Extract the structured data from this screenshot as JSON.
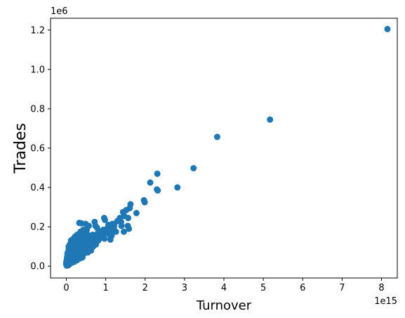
{
  "chart_data": {
    "type": "scatter",
    "title": "",
    "xlabel": "Turnover",
    "ylabel": "Trades",
    "x_offset_label": "1e15",
    "y_offset_label": "1e6",
    "xlim": [
      -0.4,
      8.4
    ],
    "ylim": [
      -0.06,
      1.26
    ],
    "x_ticks": [
      0,
      1,
      2,
      3,
      4,
      5,
      6,
      7,
      8
    ],
    "y_ticks": [
      0.0,
      0.2,
      0.4,
      0.6,
      0.8,
      1.0,
      1.2
    ],
    "x_tick_labels": [
      "0",
      "1",
      "2",
      "3",
      "4",
      "5",
      "6",
      "7",
      "8"
    ],
    "y_tick_labels": [
      "0.0",
      "0.2",
      "0.4",
      "0.6",
      "0.8",
      "1.0",
      "1.2"
    ],
    "grid": false,
    "marker_color": "#1f77b4",
    "points": [
      [
        8.15,
        1.205
      ],
      [
        5.17,
        0.745
      ],
      [
        3.83,
        0.657
      ],
      [
        3.23,
        0.498
      ],
      [
        2.82,
        0.4
      ],
      [
        2.31,
        0.47
      ],
      [
        2.3,
        0.39
      ],
      [
        2.32,
        0.385
      ],
      [
        2.13,
        0.425
      ],
      [
        1.97,
        0.335
      ],
      [
        1.99,
        0.325
      ],
      [
        1.63,
        0.315
      ],
      [
        1.61,
        0.295
      ],
      [
        1.52,
        0.285
      ],
      [
        1.44,
        0.275
      ],
      [
        1.47,
        0.255
      ],
      [
        1.78,
        0.27
      ],
      [
        1.57,
        0.245
      ],
      [
        1.36,
        0.245
      ],
      [
        1.39,
        0.225
      ],
      [
        1.4,
        0.205
      ],
      [
        1.56,
        0.205
      ],
      [
        1.59,
        0.19
      ],
      [
        1.46,
        0.175
      ],
      [
        1.22,
        0.215
      ],
      [
        1.17,
        0.215
      ],
      [
        1.14,
        0.195
      ],
      [
        1.19,
        0.18
      ],
      [
        1.26,
        0.175
      ],
      [
        1.07,
        0.21
      ],
      [
        0.96,
        0.245
      ],
      [
        0.98,
        0.235
      ],
      [
        1.08,
        0.18
      ],
      [
        1.01,
        0.17
      ],
      [
        1.15,
        0.155
      ],
      [
        1.12,
        0.135
      ],
      [
        0.94,
        0.185
      ],
      [
        0.87,
        0.175
      ],
      [
        0.78,
        0.195
      ],
      [
        0.72,
        0.225
      ],
      [
        0.74,
        0.205
      ],
      [
        0.79,
        0.165
      ],
      [
        0.91,
        0.15
      ],
      [
        0.88,
        0.16
      ],
      [
        0.97,
        0.14
      ],
      [
        0.67,
        0.16
      ],
      [
        0.64,
        0.14
      ],
      [
        0.57,
        0.205
      ],
      [
        0.52,
        0.185
      ],
      [
        0.49,
        0.215
      ],
      [
        0.33,
        0.22
      ],
      [
        0.38,
        0.218
      ],
      [
        0.36,
        0.175
      ],
      [
        0.42,
        0.16
      ],
      [
        0.47,
        0.145
      ],
      [
        0.61,
        0.13
      ],
      [
        0.81,
        0.13
      ],
      [
        0.55,
        0.115
      ],
      [
        0.65,
        0.11
      ],
      [
        0.72,
        0.12
      ],
      [
        0.45,
        0.13
      ],
      [
        0.28,
        0.16
      ],
      [
        0.3,
        0.145
      ],
      [
        0.22,
        0.15
      ],
      [
        0.19,
        0.14
      ],
      [
        0.15,
        0.135
      ],
      [
        0.12,
        0.13
      ],
      [
        0.25,
        0.125
      ],
      [
        0.34,
        0.12
      ],
      [
        0.4,
        0.11
      ],
      [
        0.5,
        0.1
      ],
      [
        0.58,
        0.095
      ],
      [
        0.63,
        0.08
      ],
      [
        0.52,
        0.085
      ],
      [
        0.44,
        0.09
      ],
      [
        0.36,
        0.1
      ],
      [
        0.29,
        0.105
      ],
      [
        0.23,
        0.115
      ],
      [
        0.17,
        0.11
      ],
      [
        0.11,
        0.105
      ],
      [
        0.08,
        0.095
      ],
      [
        0.14,
        0.09
      ],
      [
        0.2,
        0.085
      ],
      [
        0.27,
        0.08
      ],
      [
        0.33,
        0.075
      ],
      [
        0.39,
        0.07
      ],
      [
        0.46,
        0.065
      ],
      [
        0.4,
        0.05
      ],
      [
        0.41,
        0.045
      ],
      [
        0.35,
        0.055
      ],
      [
        0.31,
        0.06
      ],
      [
        0.25,
        0.065
      ],
      [
        0.19,
        0.07
      ],
      [
        0.13,
        0.075
      ],
      [
        0.07,
        0.08
      ],
      [
        0.04,
        0.07
      ],
      [
        0.09,
        0.06
      ],
      [
        0.15,
        0.055
      ],
      [
        0.21,
        0.05
      ],
      [
        0.26,
        0.045
      ],
      [
        0.3,
        0.04
      ],
      [
        0.22,
        0.035
      ],
      [
        0.17,
        0.04
      ],
      [
        0.11,
        0.045
      ],
      [
        0.06,
        0.05
      ],
      [
        0.03,
        0.055
      ],
      [
        0.02,
        0.04
      ],
      [
        0.05,
        0.035
      ],
      [
        0.08,
        0.03
      ],
      [
        0.12,
        0.028
      ],
      [
        0.16,
        0.025
      ],
      [
        0.2,
        0.022
      ],
      [
        0.14,
        0.018
      ],
      [
        0.1,
        0.02
      ],
      [
        0.07,
        0.018
      ],
      [
        0.04,
        0.022
      ],
      [
        0.02,
        0.025
      ],
      [
        0.01,
        0.03
      ],
      [
        0.03,
        0.015
      ],
      [
        0.05,
        0.012
      ],
      [
        0.08,
        0.01
      ],
      [
        0.06,
        0.006
      ],
      [
        0.03,
        0.008
      ],
      [
        0.01,
        0.012
      ],
      [
        0.02,
        0.005
      ],
      [
        0.0,
        0.008
      ],
      [
        0.01,
        0.003
      ],
      [
        0.04,
        0.004
      ],
      [
        0.0,
        0.015
      ],
      [
        0.0,
        0.02
      ],
      [
        0.02,
        0.045
      ],
      [
        0.05,
        0.06
      ],
      [
        0.03,
        0.065
      ],
      [
        0.06,
        0.085
      ],
      [
        0.1,
        0.088
      ],
      [
        0.18,
        0.095
      ],
      [
        0.24,
        0.098
      ],
      [
        0.31,
        0.09
      ],
      [
        0.37,
        0.085
      ],
      [
        0.43,
        0.08
      ],
      [
        0.48,
        0.075
      ],
      [
        0.55,
        0.07
      ],
      [
        0.6,
        0.105
      ],
      [
        0.68,
        0.1
      ],
      [
        0.75,
        0.11
      ],
      [
        0.84,
        0.14
      ],
      [
        0.7,
        0.145
      ],
      [
        0.6,
        0.15
      ],
      [
        0.54,
        0.16
      ],
      [
        0.48,
        0.17
      ],
      [
        0.43,
        0.185
      ],
      [
        0.38,
        0.155
      ],
      [
        0.32,
        0.135
      ],
      [
        0.27,
        0.14
      ],
      [
        0.21,
        0.125
      ],
      [
        0.16,
        0.12
      ],
      [
        0.13,
        0.115
      ],
      [
        0.09,
        0.11
      ],
      [
        0.06,
        0.1
      ],
      [
        0.11,
        0.065
      ],
      [
        0.18,
        0.06
      ],
      [
        0.24,
        0.055
      ],
      [
        0.29,
        0.05
      ],
      [
        0.35,
        0.045
      ],
      [
        0.27,
        0.03
      ],
      [
        0.23,
        0.028
      ],
      [
        0.18,
        0.032
      ],
      [
        0.09,
        0.04
      ],
      [
        0.13,
        0.05
      ],
      [
        0.07,
        0.065
      ],
      [
        0.35,
        0.04
      ],
      [
        0.52,
        0.12
      ],
      [
        0.58,
        0.135
      ],
      [
        0.66,
        0.125
      ],
      [
        0.76,
        0.15
      ],
      [
        0.89,
        0.17
      ],
      [
        1.03,
        0.19
      ],
      [
        1.1,
        0.16
      ],
      [
        1.21,
        0.2
      ],
      [
        1.3,
        0.23
      ]
    ]
  }
}
